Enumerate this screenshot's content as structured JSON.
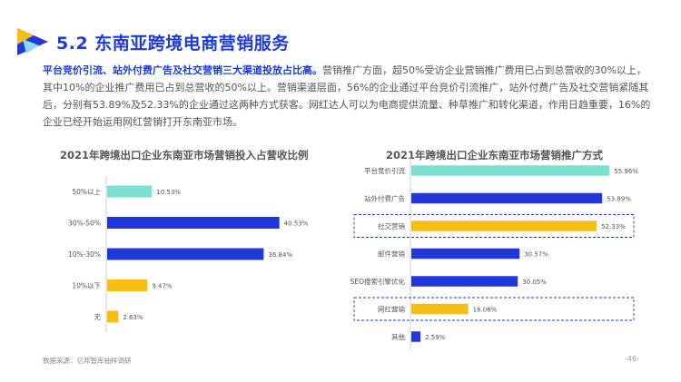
{
  "slide": {
    "title": "5.2 东南亚跨境电商营销服务",
    "paragraph_highlight": "平台竞价引流、站外付费广告及社交营销三大渠道投放占比高。",
    "paragraph_rest": "营销推广方面，超50%受访企业营销推广费用已占到总营收的30%以上，其中10%的企业推广费用已占到总营收的50%以上。营销渠道层面，56%的企业通过平台竞价引流推广，站外付费广告及社交营销紧随其后，分别有53.89%及52.33%的企业通过这两种方式获客。网红达人可以为电商提供流量、种草推广和转化渠道，作用日趋重要，16%的企业已经开始运用网红营销打开东南亚市场。",
    "source": "数据来源：亿邦智库抽样调研",
    "page": "-46-"
  },
  "colors": {
    "teal": "#7ee0d0",
    "blue": "#2137d9",
    "yellow": "#f7bf14",
    "brand": "#1e3ad8"
  },
  "chart_data": [
    {
      "type": "bar",
      "orientation": "horizontal",
      "title": "2021年跨境出口企业东南亚市场营销投入占营收比例",
      "categories": [
        "50%以上",
        "30%-50%",
        "10%-30%",
        "10%以下",
        "无"
      ],
      "values": [
        10.53,
        40.53,
        36.84,
        9.47,
        2.63
      ],
      "value_labels": [
        "10.53%",
        "40.53%",
        "36.84%",
        "9.47%",
        "2.63%"
      ],
      "bar_colors": [
        "#7ee0d0",
        "#2137d9",
        "#2137d9",
        "#f7bf14",
        "#f7bf14"
      ],
      "xlim": [
        0,
        50
      ],
      "grid": false
    },
    {
      "type": "bar",
      "orientation": "horizontal",
      "title": "2021年跨境出口企业东南亚市场营销推广方式",
      "categories": [
        "平台竞价引流",
        "站外付费广告",
        "社交营销",
        "邮件营销",
        "SEO搜索引擎优化",
        "网红营销",
        "其他"
      ],
      "values": [
        55.96,
        53.89,
        52.33,
        30.57,
        30.05,
        16.06,
        2.59
      ],
      "value_labels": [
        "55.96%",
        "53.89%",
        "52.33%",
        "30.57%",
        "30.05%",
        "16.06%",
        "2.59%"
      ],
      "bar_colors": [
        "#7ee0d0",
        "#2137d9",
        "#f7bf14",
        "#2137d9",
        "#2137d9",
        "#f7bf14",
        "#2137d9"
      ],
      "highlighted": [
        "社交营销",
        "网红营销"
      ],
      "xlim": [
        0,
        60
      ],
      "grid": false
    }
  ]
}
